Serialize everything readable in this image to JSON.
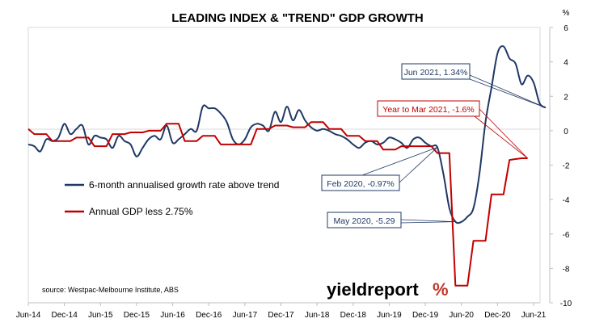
{
  "chart_data": {
    "type": "line",
    "title": "LEADING INDEX & \"TREND\" GDP GROWTH",
    "y_unit_label": "%",
    "xlabel": "",
    "ylabel": "",
    "ylim": [
      -10,
      6
    ],
    "y_ticks": [
      6,
      4,
      2,
      0,
      -2,
      -4,
      -6,
      -8,
      -10
    ],
    "x_ticks": [
      "Jun-14",
      "Dec-14",
      "Jun-15",
      "Dec-15",
      "Jun-16",
      "Dec-16",
      "Jun-17",
      "Dec-17",
      "Jun-18",
      "Dec-18",
      "Jun-19",
      "Dec-19",
      "Jun-20",
      "Dec-20",
      "Jun-21"
    ],
    "grid": false,
    "legend_position": "center-left",
    "source": "source: Westpac-Melbourne Institute, ABS",
    "logo": {
      "main": "yieldreport",
      "symbol": "%",
      "main_color": "#000000",
      "symbol_color": "#c0392b"
    },
    "series": [
      {
        "name": "6-month annualised growth rate above trend",
        "color": "#1f3864",
        "style": "smooth",
        "points": [
          [
            "2014-06",
            -0.8
          ],
          [
            "2014-07",
            -0.9
          ],
          [
            "2014-08",
            -1.2
          ],
          [
            "2014-09",
            -0.5
          ],
          [
            "2014-10",
            -0.6
          ],
          [
            "2014-11",
            -0.4
          ],
          [
            "2014-12",
            0.4
          ],
          [
            "2015-01",
            -0.2
          ],
          [
            "2015-02",
            0.1
          ],
          [
            "2015-03",
            0.3
          ],
          [
            "2015-04",
            -0.8
          ],
          [
            "2015-05",
            -0.3
          ],
          [
            "2015-06",
            -0.4
          ],
          [
            "2015-07",
            -0.5
          ],
          [
            "2015-08",
            -1.0
          ],
          [
            "2015-09",
            -0.3
          ],
          [
            "2015-10",
            -0.6
          ],
          [
            "2015-11",
            -0.8
          ],
          [
            "2015-12",
            -1.5
          ],
          [
            "2016-01",
            -1.0
          ],
          [
            "2016-02",
            -0.5
          ],
          [
            "2016-03",
            -0.3
          ],
          [
            "2016-04",
            -0.5
          ],
          [
            "2016-05",
            0.3
          ],
          [
            "2016-06",
            -0.7
          ],
          [
            "2016-07",
            -0.5
          ],
          [
            "2016-08",
            -0.2
          ],
          [
            "2016-09",
            0.1
          ],
          [
            "2016-10",
            0.0
          ],
          [
            "2016-11",
            1.4
          ],
          [
            "2016-12",
            1.3
          ],
          [
            "2017-01",
            1.3
          ],
          [
            "2017-02",
            1.0
          ],
          [
            "2017-03",
            0.5
          ],
          [
            "2017-04",
            -0.5
          ],
          [
            "2017-05",
            -0.8
          ],
          [
            "2017-06",
            -0.5
          ],
          [
            "2017-07",
            0.2
          ],
          [
            "2017-08",
            0.4
          ],
          [
            "2017-09",
            0.3
          ],
          [
            "2017-10",
            0.0
          ],
          [
            "2017-11",
            1.1
          ],
          [
            "2017-12",
            0.5
          ],
          [
            "2018-01",
            1.4
          ],
          [
            "2018-02",
            0.6
          ],
          [
            "2018-03",
            1.2
          ],
          [
            "2018-04",
            0.6
          ],
          [
            "2018-05",
            0.2
          ],
          [
            "2018-06",
            0.0
          ],
          [
            "2018-07",
            0.1
          ],
          [
            "2018-08",
            0.0
          ],
          [
            "2018-09",
            -0.2
          ],
          [
            "2018-10",
            -0.3
          ],
          [
            "2018-11",
            -0.5
          ],
          [
            "2018-12",
            -0.8
          ],
          [
            "2019-01",
            -1.0
          ],
          [
            "2019-02",
            -0.7
          ],
          [
            "2019-03",
            -0.6
          ],
          [
            "2019-04",
            -0.8
          ],
          [
            "2019-05",
            -0.7
          ],
          [
            "2019-06",
            -0.4
          ],
          [
            "2019-07",
            -0.5
          ],
          [
            "2019-08",
            -0.7
          ],
          [
            "2019-09",
            -1.0
          ],
          [
            "2019-10",
            -0.5
          ],
          [
            "2019-11",
            -0.4
          ],
          [
            "2019-12",
            -0.7
          ],
          [
            "2020-01",
            -0.9
          ],
          [
            "2020-02",
            -0.97
          ],
          [
            "2020-03",
            -2.5
          ],
          [
            "2020-04",
            -4.5
          ],
          [
            "2020-05",
            -5.29
          ],
          [
            "2020-06",
            -5.3
          ],
          [
            "2020-07",
            -5.0
          ],
          [
            "2020-08",
            -4.5
          ],
          [
            "2020-09",
            -2.5
          ],
          [
            "2020-10",
            0.5
          ],
          [
            "2020-11",
            2.5
          ],
          [
            "2020-12",
            4.5
          ],
          [
            "2021-01",
            4.9
          ],
          [
            "2021-02",
            4.2
          ],
          [
            "2021-03",
            3.9
          ],
          [
            "2021-04",
            2.7
          ],
          [
            "2021-05",
            3.2
          ],
          [
            "2021-06",
            2.8
          ],
          [
            "2021-07",
            1.6
          ],
          [
            "2021-08",
            1.34
          ]
        ]
      },
      {
        "name": "Annual GDP less 2.75%",
        "color": "#c00000",
        "style": "step",
        "points": [
          [
            "2014-06",
            0.1
          ],
          [
            "2014-07",
            -0.2
          ],
          [
            "2014-09",
            -0.2
          ],
          [
            "2014-10",
            -0.6
          ],
          [
            "2015-01",
            -0.6
          ],
          [
            "2015-02",
            -0.4
          ],
          [
            "2015-04",
            -0.4
          ],
          [
            "2015-05",
            -0.9
          ],
          [
            "2015-07",
            -0.9
          ],
          [
            "2015-08",
            -0.2
          ],
          [
            "2015-10",
            -0.2
          ],
          [
            "2015-11",
            -0.1
          ],
          [
            "2016-01",
            -0.1
          ],
          [
            "2016-02",
            0.0
          ],
          [
            "2016-04",
            0.0
          ],
          [
            "2016-05",
            0.4
          ],
          [
            "2016-07",
            0.4
          ],
          [
            "2016-08",
            -0.6
          ],
          [
            "2016-10",
            -0.6
          ],
          [
            "2016-11",
            -0.3
          ],
          [
            "2017-01",
            -0.3
          ],
          [
            "2017-02",
            -0.8
          ],
          [
            "2017-07",
            -0.8
          ],
          [
            "2017-08",
            0.1
          ],
          [
            "2017-10",
            0.1
          ],
          [
            "2017-11",
            0.3
          ],
          [
            "2018-01",
            0.3
          ],
          [
            "2018-02",
            0.2
          ],
          [
            "2018-04",
            0.2
          ],
          [
            "2018-05",
            0.5
          ],
          [
            "2018-07",
            0.5
          ],
          [
            "2018-08",
            0.1
          ],
          [
            "2018-10",
            0.1
          ],
          [
            "2018-11",
            -0.3
          ],
          [
            "2019-01",
            -0.3
          ],
          [
            "2019-02",
            -0.6
          ],
          [
            "2019-04",
            -0.6
          ],
          [
            "2019-05",
            -1.1
          ],
          [
            "2019-07",
            -1.1
          ],
          [
            "2019-08",
            -0.9
          ],
          [
            "2019-10",
            -0.9
          ],
          [
            "2019-11",
            -0.9
          ],
          [
            "2020-01",
            -0.9
          ],
          [
            "2020-02",
            -1.3
          ],
          [
            "2020-04",
            -1.3
          ],
          [
            "2020-05",
            -9.0
          ],
          [
            "2020-07",
            -9.0
          ],
          [
            "2020-08",
            -6.4
          ],
          [
            "2020-10",
            -6.4
          ],
          [
            "2020-11",
            -3.7
          ],
          [
            "2021-01",
            -3.7
          ],
          [
            "2021-02",
            -1.7
          ],
          [
            "2021-04",
            -1.6
          ],
          [
            "2021-05",
            -1.6
          ]
        ]
      }
    ],
    "annotations": [
      {
        "text": "Jun 2021, 1.34%",
        "color": "#1f3864",
        "target": [
          "2021-08",
          1.34
        ]
      },
      {
        "text": "Year to Mar 2021, -1.6%",
        "color": "#c00000",
        "target": [
          "2021-05",
          -1.6
        ]
      },
      {
        "text": "Feb 2020, -0.97%",
        "color": "#1f3864",
        "target": [
          "2020-02",
          -0.97
        ]
      },
      {
        "text": "May 2020, -5.29",
        "color": "#1f3864",
        "target": [
          "2020-05",
          -5.29
        ]
      }
    ]
  }
}
